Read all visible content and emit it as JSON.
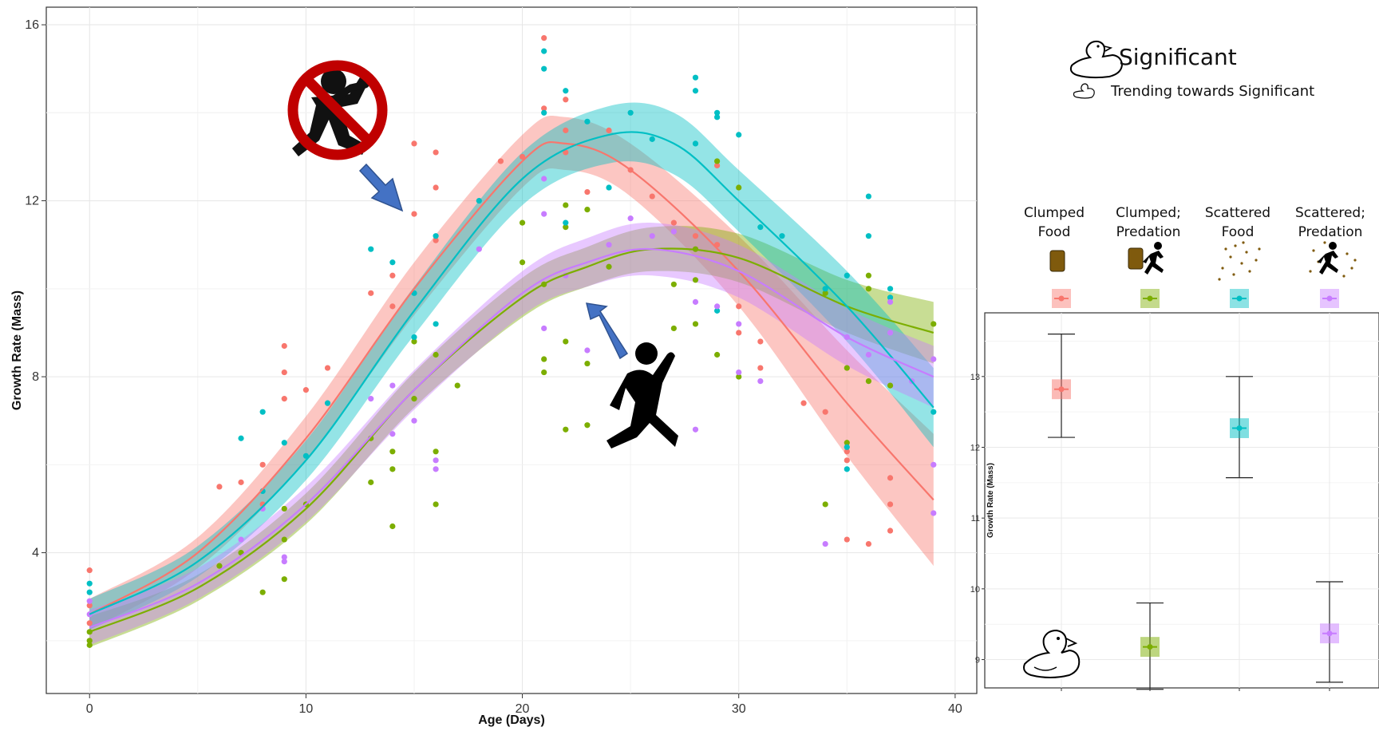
{
  "chart_data": [
    {
      "type": "scatter",
      "title": "",
      "xlabel": "Age (Days)",
      "ylabel": "Growth Rate (Mass)",
      "xlim": [
        -2,
        41
      ],
      "ylim": [
        0.8,
        16.4
      ],
      "x_ticks": [
        0,
        10,
        20,
        30,
        40
      ],
      "y_ticks": [
        4,
        8,
        12,
        16
      ],
      "grid": true,
      "fit": "smooth curve with confidence band per group",
      "series": [
        {
          "color": "#F8766D",
          "curve": [
            [
              0,
              2.6
            ],
            [
              5,
              4.0
            ],
            [
              10,
              6.6
            ],
            [
              15,
              10.0
            ],
            [
              20,
              12.9
            ],
            [
              22,
              13.3
            ],
            [
              25,
              12.7
            ],
            [
              30,
              10.4
            ],
            [
              35,
              7.4
            ],
            [
              39,
              5.2
            ]
          ],
          "band": [
            0.35,
            0.35,
            0.5,
            0.6,
            0.6,
            0.6,
            0.6,
            0.8,
            1.2,
            1.5
          ],
          "points": [
            [
              0,
              3.6
            ],
            [
              0,
              2.8
            ],
            [
              0,
              2.4
            ],
            [
              6,
              5.5
            ],
            [
              7,
              5.6
            ],
            [
              8,
              6.0
            ],
            [
              8,
              5.1
            ],
            [
              9,
              8.7
            ],
            [
              9,
              8.1
            ],
            [
              9,
              7.5
            ],
            [
              10,
              7.7
            ],
            [
              11,
              8.2
            ],
            [
              13,
              9.9
            ],
            [
              14,
              10.3
            ],
            [
              14,
              9.6
            ],
            [
              15,
              13.3
            ],
            [
              15,
              11.7
            ],
            [
              16,
              13.1
            ],
            [
              16,
              12.3
            ],
            [
              16,
              11.1
            ],
            [
              19,
              12.9
            ],
            [
              20,
              13.0
            ],
            [
              21,
              15.7
            ],
            [
              21,
              14.1
            ],
            [
              22,
              14.3
            ],
            [
              22,
              13.6
            ],
            [
              22,
              13.1
            ],
            [
              23,
              12.2
            ],
            [
              24,
              13.6
            ],
            [
              25,
              12.7
            ],
            [
              26,
              12.1
            ],
            [
              27,
              11.5
            ],
            [
              28,
              11.2
            ],
            [
              29,
              12.8
            ],
            [
              29,
              11.0
            ],
            [
              30,
              9.6
            ],
            [
              30,
              9.0
            ],
            [
              31,
              8.8
            ],
            [
              31,
              8.2
            ],
            [
              33,
              7.4
            ],
            [
              34,
              7.2
            ],
            [
              35,
              6.3
            ],
            [
              35,
              6.1
            ],
            [
              35,
              4.3
            ],
            [
              36,
              4.2
            ],
            [
              37,
              5.7
            ],
            [
              37,
              5.1
            ],
            [
              37,
              4.5
            ]
          ]
        },
        {
          "color": "#7CAE00",
          "curve": [
            [
              0,
              2.2
            ],
            [
              5,
              3.2
            ],
            [
              10,
              5.0
            ],
            [
              15,
              7.7
            ],
            [
              20,
              9.8
            ],
            [
              23,
              10.5
            ],
            [
              26,
              10.9
            ],
            [
              30,
              10.7
            ],
            [
              35,
              9.6
            ],
            [
              39,
              9.0
            ]
          ],
          "band": [
            0.35,
            0.3,
            0.35,
            0.4,
            0.45,
            0.45,
            0.5,
            0.55,
            0.6,
            0.7
          ],
          "points": [
            [
              0,
              2.2
            ],
            [
              0,
              1.9
            ],
            [
              0,
              2.0
            ],
            [
              6,
              3.7
            ],
            [
              7,
              4.0
            ],
            [
              8,
              3.1
            ],
            [
              9,
              3.4
            ],
            [
              9,
              4.3
            ],
            [
              9,
              5.0
            ],
            [
              10,
              5.1
            ],
            [
              13,
              5.6
            ],
            [
              13,
              6.6
            ],
            [
              14,
              4.6
            ],
            [
              14,
              5.9
            ],
            [
              14,
              6.3
            ],
            [
              15,
              7.5
            ],
            [
              15,
              8.8
            ],
            [
              16,
              6.3
            ],
            [
              16,
              5.1
            ],
            [
              16,
              8.5
            ],
            [
              17,
              7.8
            ],
            [
              20,
              11.5
            ],
            [
              20,
              10.6
            ],
            [
              21,
              8.1
            ],
            [
              21,
              8.4
            ],
            [
              21,
              10.1
            ],
            [
              22,
              6.8
            ],
            [
              22,
              8.8
            ],
            [
              22,
              11.4
            ],
            [
              22,
              11.9
            ],
            [
              23,
              6.9
            ],
            [
              23,
              11.8
            ],
            [
              23,
              8.3
            ],
            [
              24,
              10.5
            ],
            [
              27,
              10.1
            ],
            [
              27,
              9.1
            ],
            [
              28,
              10.9
            ],
            [
              28,
              10.2
            ],
            [
              28,
              9.2
            ],
            [
              29,
              12.9
            ],
            [
              29,
              8.5
            ],
            [
              30,
              12.3
            ],
            [
              30,
              8.0
            ],
            [
              34,
              5.1
            ],
            [
              34,
              9.9
            ],
            [
              35,
              6.5
            ],
            [
              35,
              8.2
            ],
            [
              36,
              10.3
            ],
            [
              36,
              10.0
            ],
            [
              36,
              7.9
            ],
            [
              37,
              7.8
            ],
            [
              39,
              9.2
            ]
          ]
        },
        {
          "color": "#00BFC4",
          "curve": [
            [
              0,
              2.6
            ],
            [
              5,
              3.8
            ],
            [
              10,
              6.1
            ],
            [
              15,
              9.5
            ],
            [
              20,
              12.5
            ],
            [
              24,
              13.5
            ],
            [
              27,
              13.3
            ],
            [
              30,
              12.0
            ],
            [
              35,
              9.6
            ],
            [
              39,
              7.3
            ]
          ],
          "band": [
            0.35,
            0.35,
            0.45,
            0.55,
            0.6,
            0.65,
            0.7,
            0.7,
            0.8,
            0.9
          ],
          "points": [
            [
              0,
              3.3
            ],
            [
              0,
              3.1
            ],
            [
              7,
              6.6
            ],
            [
              8,
              7.2
            ],
            [
              8,
              5.4
            ],
            [
              9,
              6.5
            ],
            [
              10,
              6.2
            ],
            [
              11,
              7.4
            ],
            [
              13,
              10.9
            ],
            [
              14,
              10.6
            ],
            [
              15,
              9.9
            ],
            [
              15,
              8.9
            ],
            [
              16,
              9.2
            ],
            [
              16,
              11.2
            ],
            [
              18,
              12.0
            ],
            [
              21,
              15.4
            ],
            [
              21,
              15.0
            ],
            [
              21,
              14.0
            ],
            [
              22,
              14.5
            ],
            [
              22,
              11.5
            ],
            [
              23,
              13.8
            ],
            [
              24,
              12.3
            ],
            [
              25,
              14.0
            ],
            [
              26,
              13.4
            ],
            [
              28,
              14.8
            ],
            [
              28,
              14.5
            ],
            [
              28,
              13.3
            ],
            [
              29,
              14.0
            ],
            [
              29,
              13.9
            ],
            [
              29,
              9.5
            ],
            [
              30,
              13.5
            ],
            [
              31,
              11.4
            ],
            [
              32,
              11.2
            ],
            [
              34,
              10.0
            ],
            [
              35,
              10.3
            ],
            [
              35,
              6.4
            ],
            [
              35,
              5.9
            ],
            [
              36,
              12.1
            ],
            [
              36,
              11.2
            ],
            [
              37,
              10.0
            ],
            [
              37,
              9.8
            ],
            [
              39,
              7.2
            ]
          ]
        },
        {
          "color": "#C77CFF",
          "curve": [
            [
              0,
              2.3
            ],
            [
              5,
              3.3
            ],
            [
              10,
              5.1
            ],
            [
              15,
              7.7
            ],
            [
              20,
              9.9
            ],
            [
              23,
              10.6
            ],
            [
              26,
              10.9
            ],
            [
              30,
              10.4
            ],
            [
              35,
              8.9
            ],
            [
              39,
              8.0
            ]
          ],
          "band": [
            0.4,
            0.35,
            0.4,
            0.45,
            0.5,
            0.55,
            0.6,
            0.6,
            0.65,
            0.7
          ],
          "points": [
            [
              0,
              2.9
            ],
            [
              0,
              2.6
            ],
            [
              7,
              4.3
            ],
            [
              8,
              5.0
            ],
            [
              9,
              3.8
            ],
            [
              9,
              3.9
            ],
            [
              13,
              7.5
            ],
            [
              14,
              6.7
            ],
            [
              14,
              7.8
            ],
            [
              15,
              7.0
            ],
            [
              16,
              6.1
            ],
            [
              16,
              5.9
            ],
            [
              18,
              10.9
            ],
            [
              21,
              12.5
            ],
            [
              21,
              11.7
            ],
            [
              21,
              9.1
            ],
            [
              22,
              10.3
            ],
            [
              23,
              8.6
            ],
            [
              24,
              11.0
            ],
            [
              25,
              11.6
            ],
            [
              26,
              11.2
            ],
            [
              27,
              11.3
            ],
            [
              28,
              6.8
            ],
            [
              28,
              9.7
            ],
            [
              29,
              9.6
            ],
            [
              30,
              8.1
            ],
            [
              30,
              9.2
            ],
            [
              31,
              7.9
            ],
            [
              34,
              4.2
            ],
            [
              35,
              8.9
            ],
            [
              36,
              8.5
            ],
            [
              37,
              9.7
            ],
            [
              37,
              9.0
            ],
            [
              38,
              7.9
            ],
            [
              39,
              6.0
            ],
            [
              39,
              4.9
            ],
            [
              39,
              8.4
            ]
          ]
        }
      ]
    },
    {
      "type": "scatter",
      "title": "",
      "xlabel": "",
      "ylabel": "Growth Rate (Mass)",
      "ylim": [
        8.6,
        13.9
      ],
      "y_ticks": [
        9,
        10,
        11,
        12,
        13
      ],
      "grid": true,
      "categories": [
        "Clumped Food",
        "Clumped; Predation",
        "Scattered Food",
        "Scattered; Predation"
      ],
      "estimates": [
        12.82,
        9.18,
        12.27,
        9.37
      ],
      "box_low": [
        12.68,
        9.04,
        12.13,
        9.23
      ],
      "box_high": [
        12.96,
        9.32,
        12.41,
        9.51
      ],
      "ci_low": [
        12.14,
        8.58,
        11.57,
        8.68
      ],
      "ci_high": [
        13.6,
        9.8,
        13.0,
        10.1
      ],
      "colors": [
        "#F8766D",
        "#7CAE00",
        "#00BFC4",
        "#C77CFF"
      ]
    }
  ],
  "legend": {
    "significant_label": "Significant",
    "trending_label": "Trending towards Significant",
    "group_labels": [
      {
        "line1": "Clumped",
        "line2": "Food"
      },
      {
        "line1": "Clumped;",
        "line2": "Predation"
      },
      {
        "line1": "Scattered",
        "line2": "Food"
      },
      {
        "line1": "Scattered;",
        "line2": "Predation"
      }
    ],
    "icons": [
      "clumped-food-icon",
      "clumped-predation-icon",
      "scattered-food-icon",
      "scattered-predation-icon"
    ]
  },
  "annotations": {
    "no_predation_icon": "no-running-person-icon",
    "predation_icon": "running-person-icon",
    "arrow_color": "#4472C4",
    "food_color": "#7F5A0D"
  }
}
